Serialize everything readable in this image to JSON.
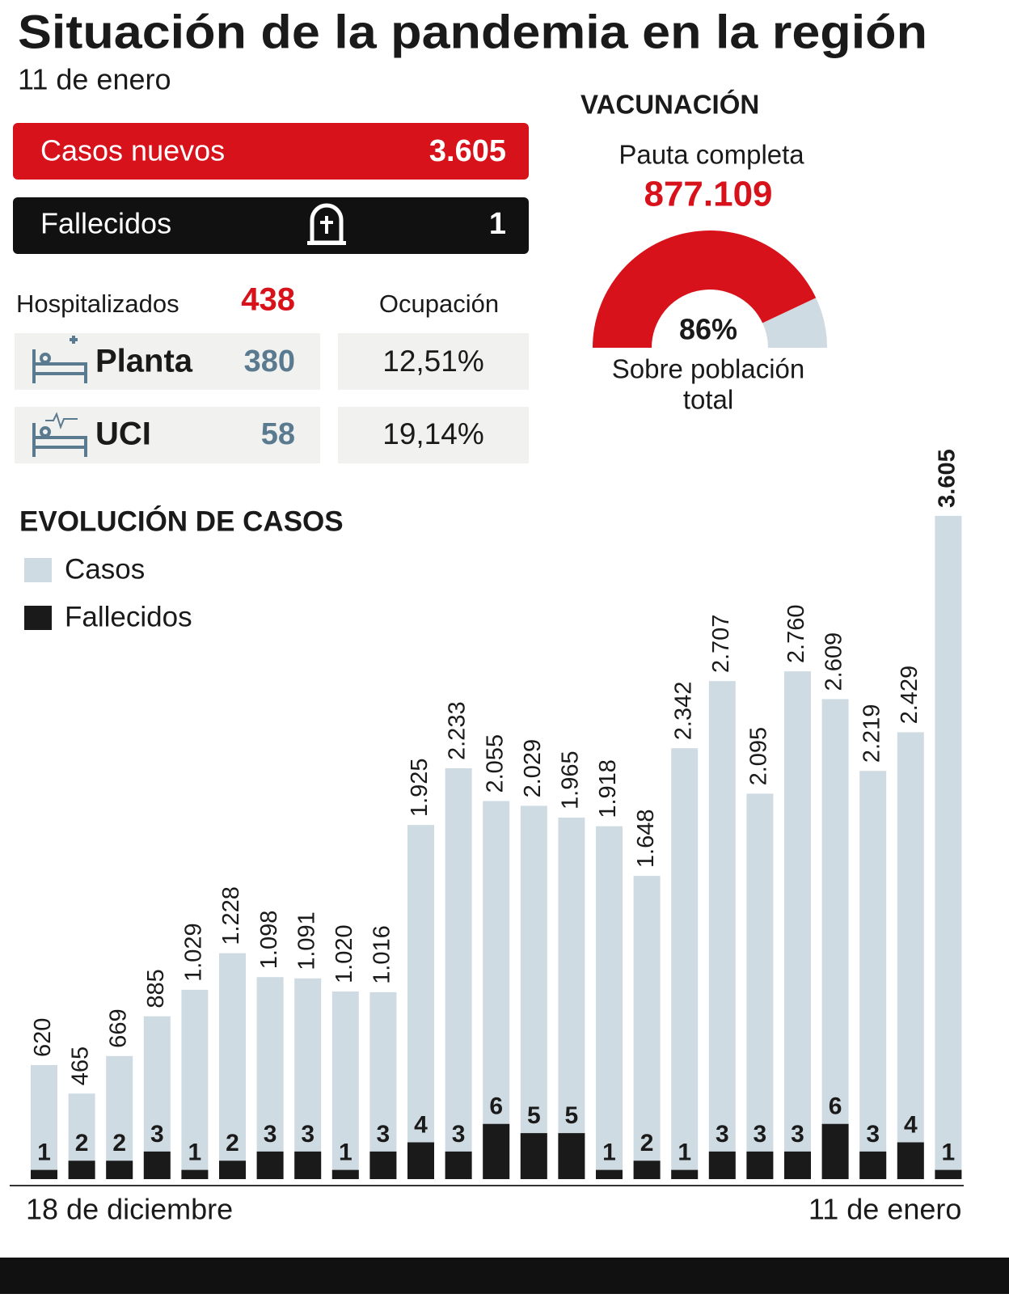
{
  "header": {
    "title": "Situación de la pandemia en la región",
    "date": "11 de enero"
  },
  "summary": {
    "new_cases": {
      "label": "Casos nuevos",
      "value": "3.605"
    },
    "deaths": {
      "label": "Fallecidos",
      "value": "1"
    }
  },
  "hospital": {
    "label": "Hospitalizados",
    "total": "438",
    "occupancy_label": "Ocupación",
    "rows": [
      {
        "label": "Planta",
        "value": "380",
        "occupancy": "12,51%"
      },
      {
        "label": "UCI",
        "value": "58",
        "occupancy": "19,14%"
      }
    ]
  },
  "vaccination": {
    "title": "VACUNACIÓN",
    "subtitle": "Pauta completa",
    "count": "877.109",
    "gauge": {
      "value": 86,
      "label": "86%",
      "ylim": [
        0,
        100
      ]
    },
    "note_lines": [
      "Sobre población",
      "total"
    ]
  },
  "chart_data": {
    "type": "bar",
    "title": "EVOLUCIÓN DE CASOS",
    "categories": [
      "18 de diciembre",
      null,
      null,
      null,
      null,
      null,
      null,
      null,
      null,
      null,
      null,
      null,
      null,
      null,
      null,
      null,
      null,
      null,
      null,
      null,
      null,
      null,
      null,
      null,
      "11 de enero"
    ],
    "series": [
      {
        "name": "Casos",
        "color": "#cfdbe2",
        "values": [
          620,
          465,
          669,
          885,
          1029,
          1228,
          1098,
          1091,
          1020,
          1016,
          1925,
          2233,
          2055,
          2029,
          1965,
          1918,
          1648,
          2342,
          2707,
          2095,
          2760,
          2609,
          2219,
          2429,
          3605
        ],
        "value_labels": [
          "620",
          "465",
          "669",
          "885",
          "1.029",
          "1.228",
          "1.098",
          "1.091",
          "1.020",
          "1.016",
          "1.925",
          "2.233",
          "2.055",
          "2.029",
          "1.965",
          "1.918",
          "1.648",
          "2.342",
          "2.707",
          "2.095",
          "2.760",
          "2.609",
          "2.219",
          "2.429",
          "3.605"
        ]
      },
      {
        "name": "Fallecidos",
        "color": "#1a1a1a",
        "axis": "y2",
        "values": [
          1,
          2,
          2,
          3,
          1,
          2,
          3,
          3,
          1,
          3,
          4,
          3,
          6,
          5,
          5,
          1,
          2,
          1,
          3,
          3,
          3,
          6,
          3,
          4,
          1
        ]
      }
    ],
    "ylim": [
      0,
      4000
    ],
    "y2lim": [
      0,
      80
    ]
  }
}
